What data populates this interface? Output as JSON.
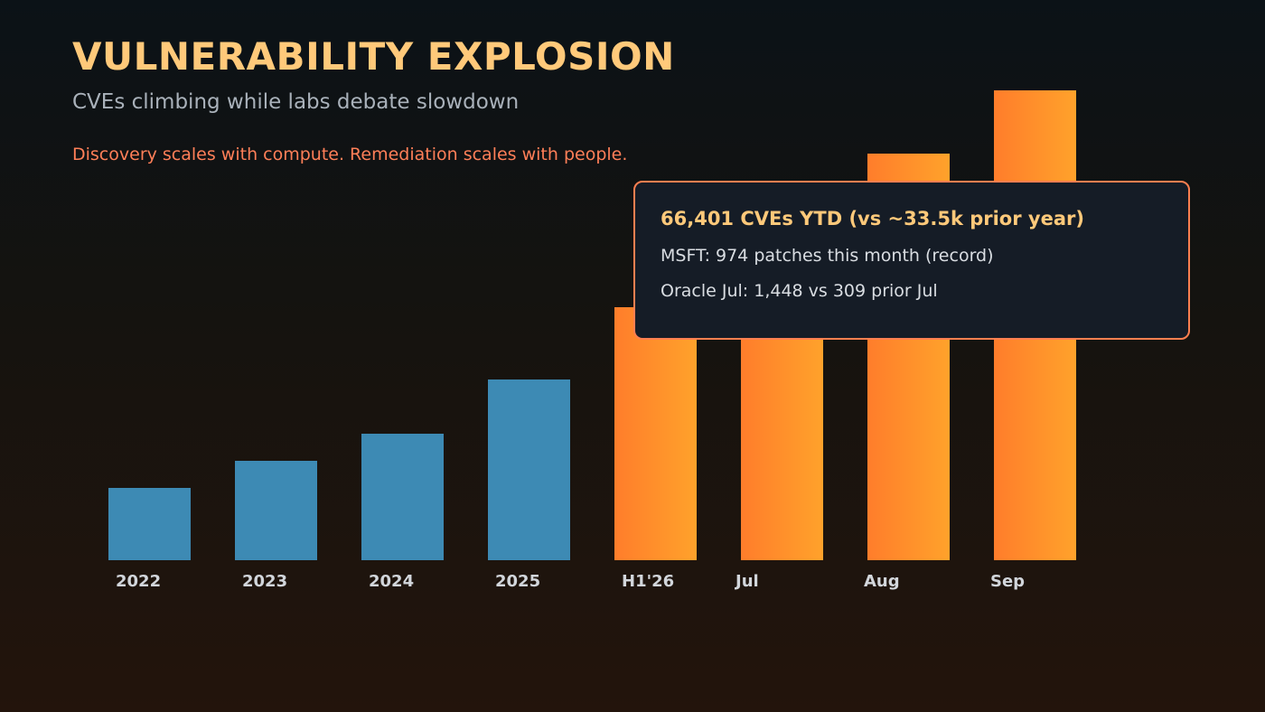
{
  "header": {
    "title": "VULNERABILITY EXPLOSION",
    "subtitle": "CVEs climbing while labs debate slowdown",
    "tagline": "Discovery scales with compute. Remediation scales with people."
  },
  "callout": {
    "headline": "66,401 CVEs YTD (vs ~33.5k prior year)",
    "line1": "MSFT: 974 patches this month (record)",
    "line2": "Oracle Jul: 1,448 vs 309 prior Jul"
  },
  "colors": {
    "title": "#ffc97a",
    "subtitle": "#a9b1ba",
    "tagline": "#ff7f58",
    "historical_bar": "#3d8ab4",
    "current_bar_start": "#ff7d2b",
    "current_bar_end": "#ffa22b",
    "callout_border": "#ff7f50",
    "tick_label": "#d2d6db"
  },
  "chart_data": {
    "type": "bar",
    "categories": [
      "2022",
      "2023",
      "2024",
      "2025",
      "H1'26",
      "Jul",
      "Aug",
      "Sep"
    ],
    "values": [
      80,
      110,
      140,
      200,
      280,
      380,
      450,
      520
    ],
    "groups": [
      "historical",
      "historical",
      "historical",
      "historical",
      "current",
      "current",
      "current",
      "current"
    ],
    "ylim": [
      0,
      520
    ],
    "grid": false,
    "legend": "none",
    "title": "",
    "xlabel": "",
    "ylabel": ""
  }
}
